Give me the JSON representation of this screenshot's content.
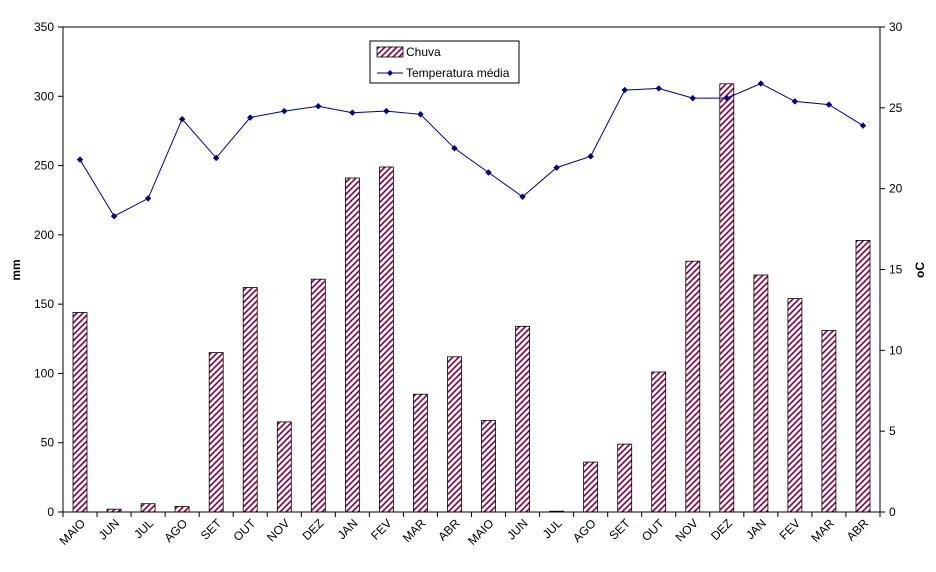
{
  "chart_data": {
    "type": "bar+line",
    "categories": [
      "MAIO",
      "JUN",
      "JUL",
      "AGO",
      "SET",
      "OUT",
      "NOV",
      "DEZ",
      "JAN",
      "FEV",
      "MAR",
      "ABR",
      "MAIO",
      "JUN",
      "JUL",
      "AGO",
      "SET",
      "OUT",
      "NOV",
      "DEZ",
      "JAN",
      "FEV",
      "MAR",
      "ABR"
    ],
    "series": [
      {
        "name": "Chuva",
        "kind": "bar",
        "axis": "left",
        "color": "#800040",
        "values": [
          144,
          2,
          6,
          4,
          115,
          162,
          65,
          168,
          241,
          249,
          85,
          112,
          66,
          134,
          0.5,
          36,
          49,
          101,
          181,
          309,
          171,
          154,
          131,
          196
        ]
      },
      {
        "name": "Temperatura média",
        "kind": "line",
        "axis": "right",
        "color": "#000080",
        "values": [
          21.8,
          18.3,
          19.4,
          24.3,
          21.9,
          24.4,
          24.8,
          25.1,
          24.7,
          24.8,
          24.6,
          22.5,
          21.0,
          19.5,
          21.3,
          22.0,
          26.1,
          26.2,
          25.6,
          25.6,
          26.5,
          25.4,
          25.2,
          23.9
        ]
      }
    ],
    "ylabel_left": "mm",
    "ylabel_right": "oC",
    "ylim_left": [
      0,
      350
    ],
    "yticks_left": [
      0,
      50,
      100,
      150,
      200,
      250,
      300,
      350
    ],
    "ylim_right": [
      0,
      30
    ],
    "yticks_right": [
      0,
      5,
      10,
      15,
      20,
      25,
      30
    ],
    "grid": false,
    "legend": "top-center"
  }
}
